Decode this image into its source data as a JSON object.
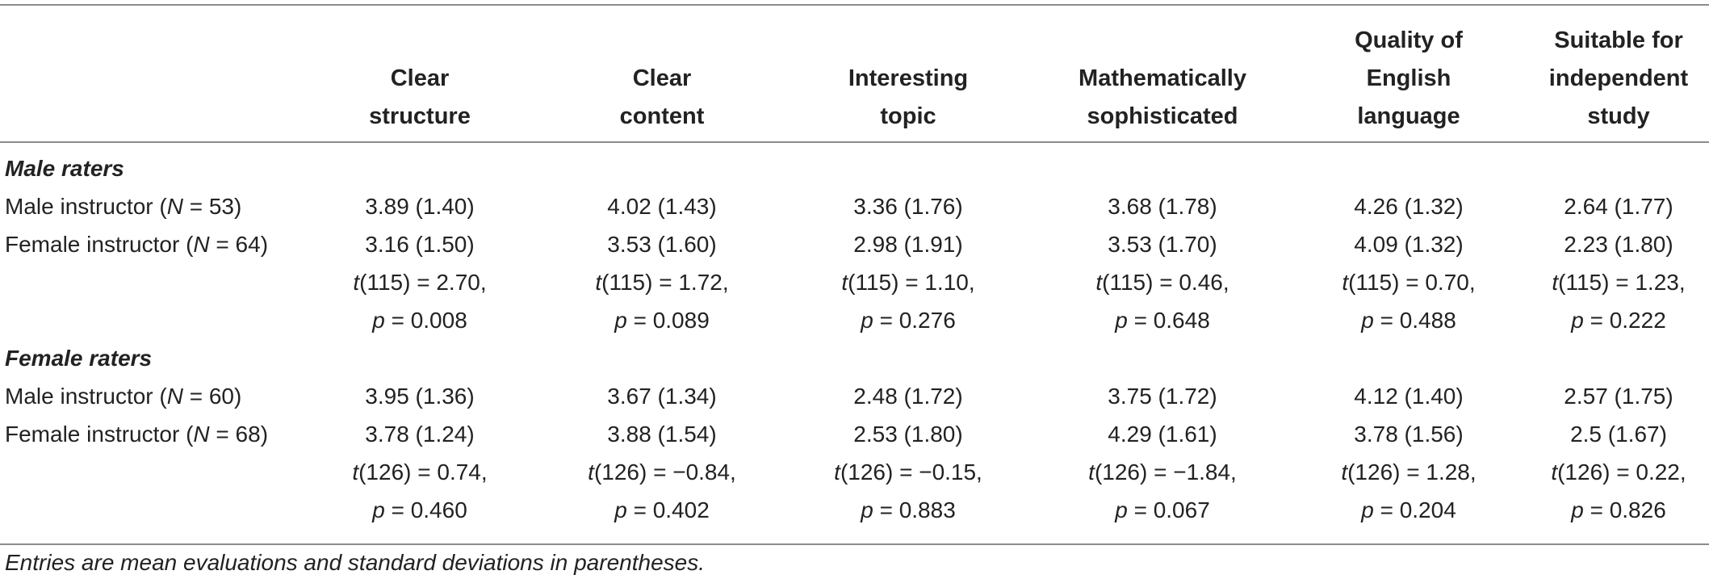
{
  "columns": [
    {
      "line1": "",
      "line2": "Clear",
      "line3": "structure"
    },
    {
      "line1": "",
      "line2": "Clear",
      "line3": "content"
    },
    {
      "line1": "",
      "line2": "Interesting",
      "line3": "topic"
    },
    {
      "line1": "",
      "line2": "Mathematically",
      "line3": "sophisticated"
    },
    {
      "line1": "Quality of",
      "line2": "English",
      "line3": "language"
    },
    {
      "line1": "Suitable for",
      "line2": "independent",
      "line3": "study"
    }
  ],
  "sections": [
    {
      "title": "Male raters",
      "rows": [
        {
          "label_pre": "Male instructor (",
          "label_var": "N",
          "label_post": " = 53)",
          "values": [
            "3.89 (1.40)",
            "4.02 (1.43)",
            "3.36 (1.76)",
            "3.68 (1.78)",
            "4.26 (1.32)",
            "2.64 (1.77)"
          ]
        },
        {
          "label_pre": "Female instructor (",
          "label_var": "N",
          "label_post": " = 64)",
          "values": [
            "3.16 (1.50)",
            "3.53 (1.60)",
            "2.98 (1.91)",
            "3.53 (1.70)",
            "4.09 (1.32)",
            "2.23 (1.80)"
          ]
        }
      ],
      "tests": [
        {
          "t": "(115) = 2.70,",
          "p": " = 0.008"
        },
        {
          "t": "(115) = 1.72,",
          "p": " = 0.089"
        },
        {
          "t": "(115) = 1.10,",
          "p": " = 0.276"
        },
        {
          "t": "(115) = 0.46,",
          "p": " = 0.648"
        },
        {
          "t": "(115) = 0.70,",
          "p": " = 0.488"
        },
        {
          "t": "(115) = 1.23,",
          "p": " = 0.222"
        }
      ]
    },
    {
      "title": "Female raters",
      "rows": [
        {
          "label_pre": "Male instructor (",
          "label_var": "N",
          "label_post": " = 60)",
          "values": [
            "3.95 (1.36)",
            "3.67 (1.34)",
            "2.48 (1.72)",
            "3.75 (1.72)",
            "4.12 (1.40)",
            "2.57 (1.75)"
          ]
        },
        {
          "label_pre": "Female instructor (",
          "label_var": "N",
          "label_post": " = 68)",
          "values": [
            "3.78 (1.24)",
            "3.88 (1.54)",
            "2.53 (1.80)",
            "4.29 (1.61)",
            "3.78 (1.56)",
            "2.5 (1.67)"
          ]
        }
      ],
      "tests": [
        {
          "t": "(126) = 0.74,",
          "p": " = 0.460"
        },
        {
          "t": "(126) = −0.84,",
          "p": " = 0.402"
        },
        {
          "t": "(126) = −0.15,",
          "p": " = 0.883"
        },
        {
          "t": "(126) = −1.84,",
          "p": " = 0.067"
        },
        {
          "t": "(126) = 1.28,",
          "p": " = 0.204"
        },
        {
          "t": "(126) = 0.22,",
          "p": " = 0.826"
        }
      ]
    }
  ],
  "stat_symbols": {
    "t": "t",
    "p": "p"
  },
  "footnote": "Entries are mean evaluations and standard deviations in parentheses."
}
